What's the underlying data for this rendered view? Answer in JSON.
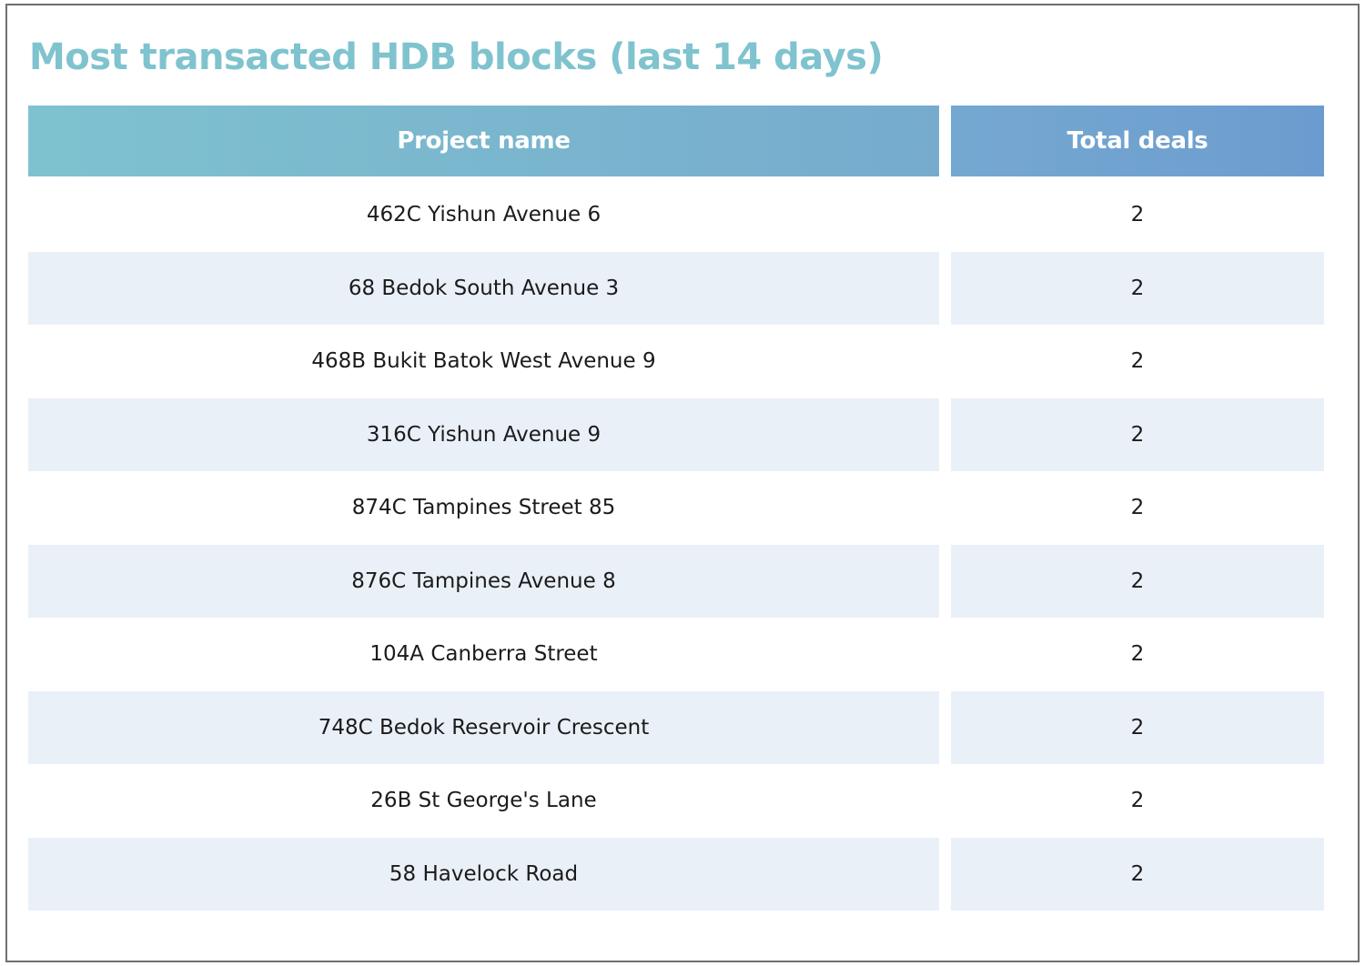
{
  "chart_data": {
    "type": "table",
    "title": "Most transacted HDB blocks (last 14 days)",
    "columns": [
      "Project name",
      "Total deals"
    ],
    "rows": [
      [
        "462C Yishun Avenue 6",
        "2"
      ],
      [
        "68 Bedok South Avenue 3",
        "2"
      ],
      [
        "468B Bukit Batok West Avenue 9",
        "2"
      ],
      [
        "316C Yishun Avenue 9",
        "2"
      ],
      [
        "874C Tampines Street 85",
        "2"
      ],
      [
        "876C Tampines Avenue 8",
        "2"
      ],
      [
        "104A Canberra Street",
        "2"
      ],
      [
        "748C Bedok Reservoir Crescent",
        "2"
      ],
      [
        "26B St George's Lane",
        "2"
      ],
      [
        "58 Havelock Road",
        "2"
      ]
    ]
  },
  "colors": {
    "title": "#7fc3cf",
    "header_start": "#7fc2cf",
    "header_end": "#6c9ccf",
    "row_alt": "#eaf0f8",
    "border": "#6f6f6f"
  }
}
